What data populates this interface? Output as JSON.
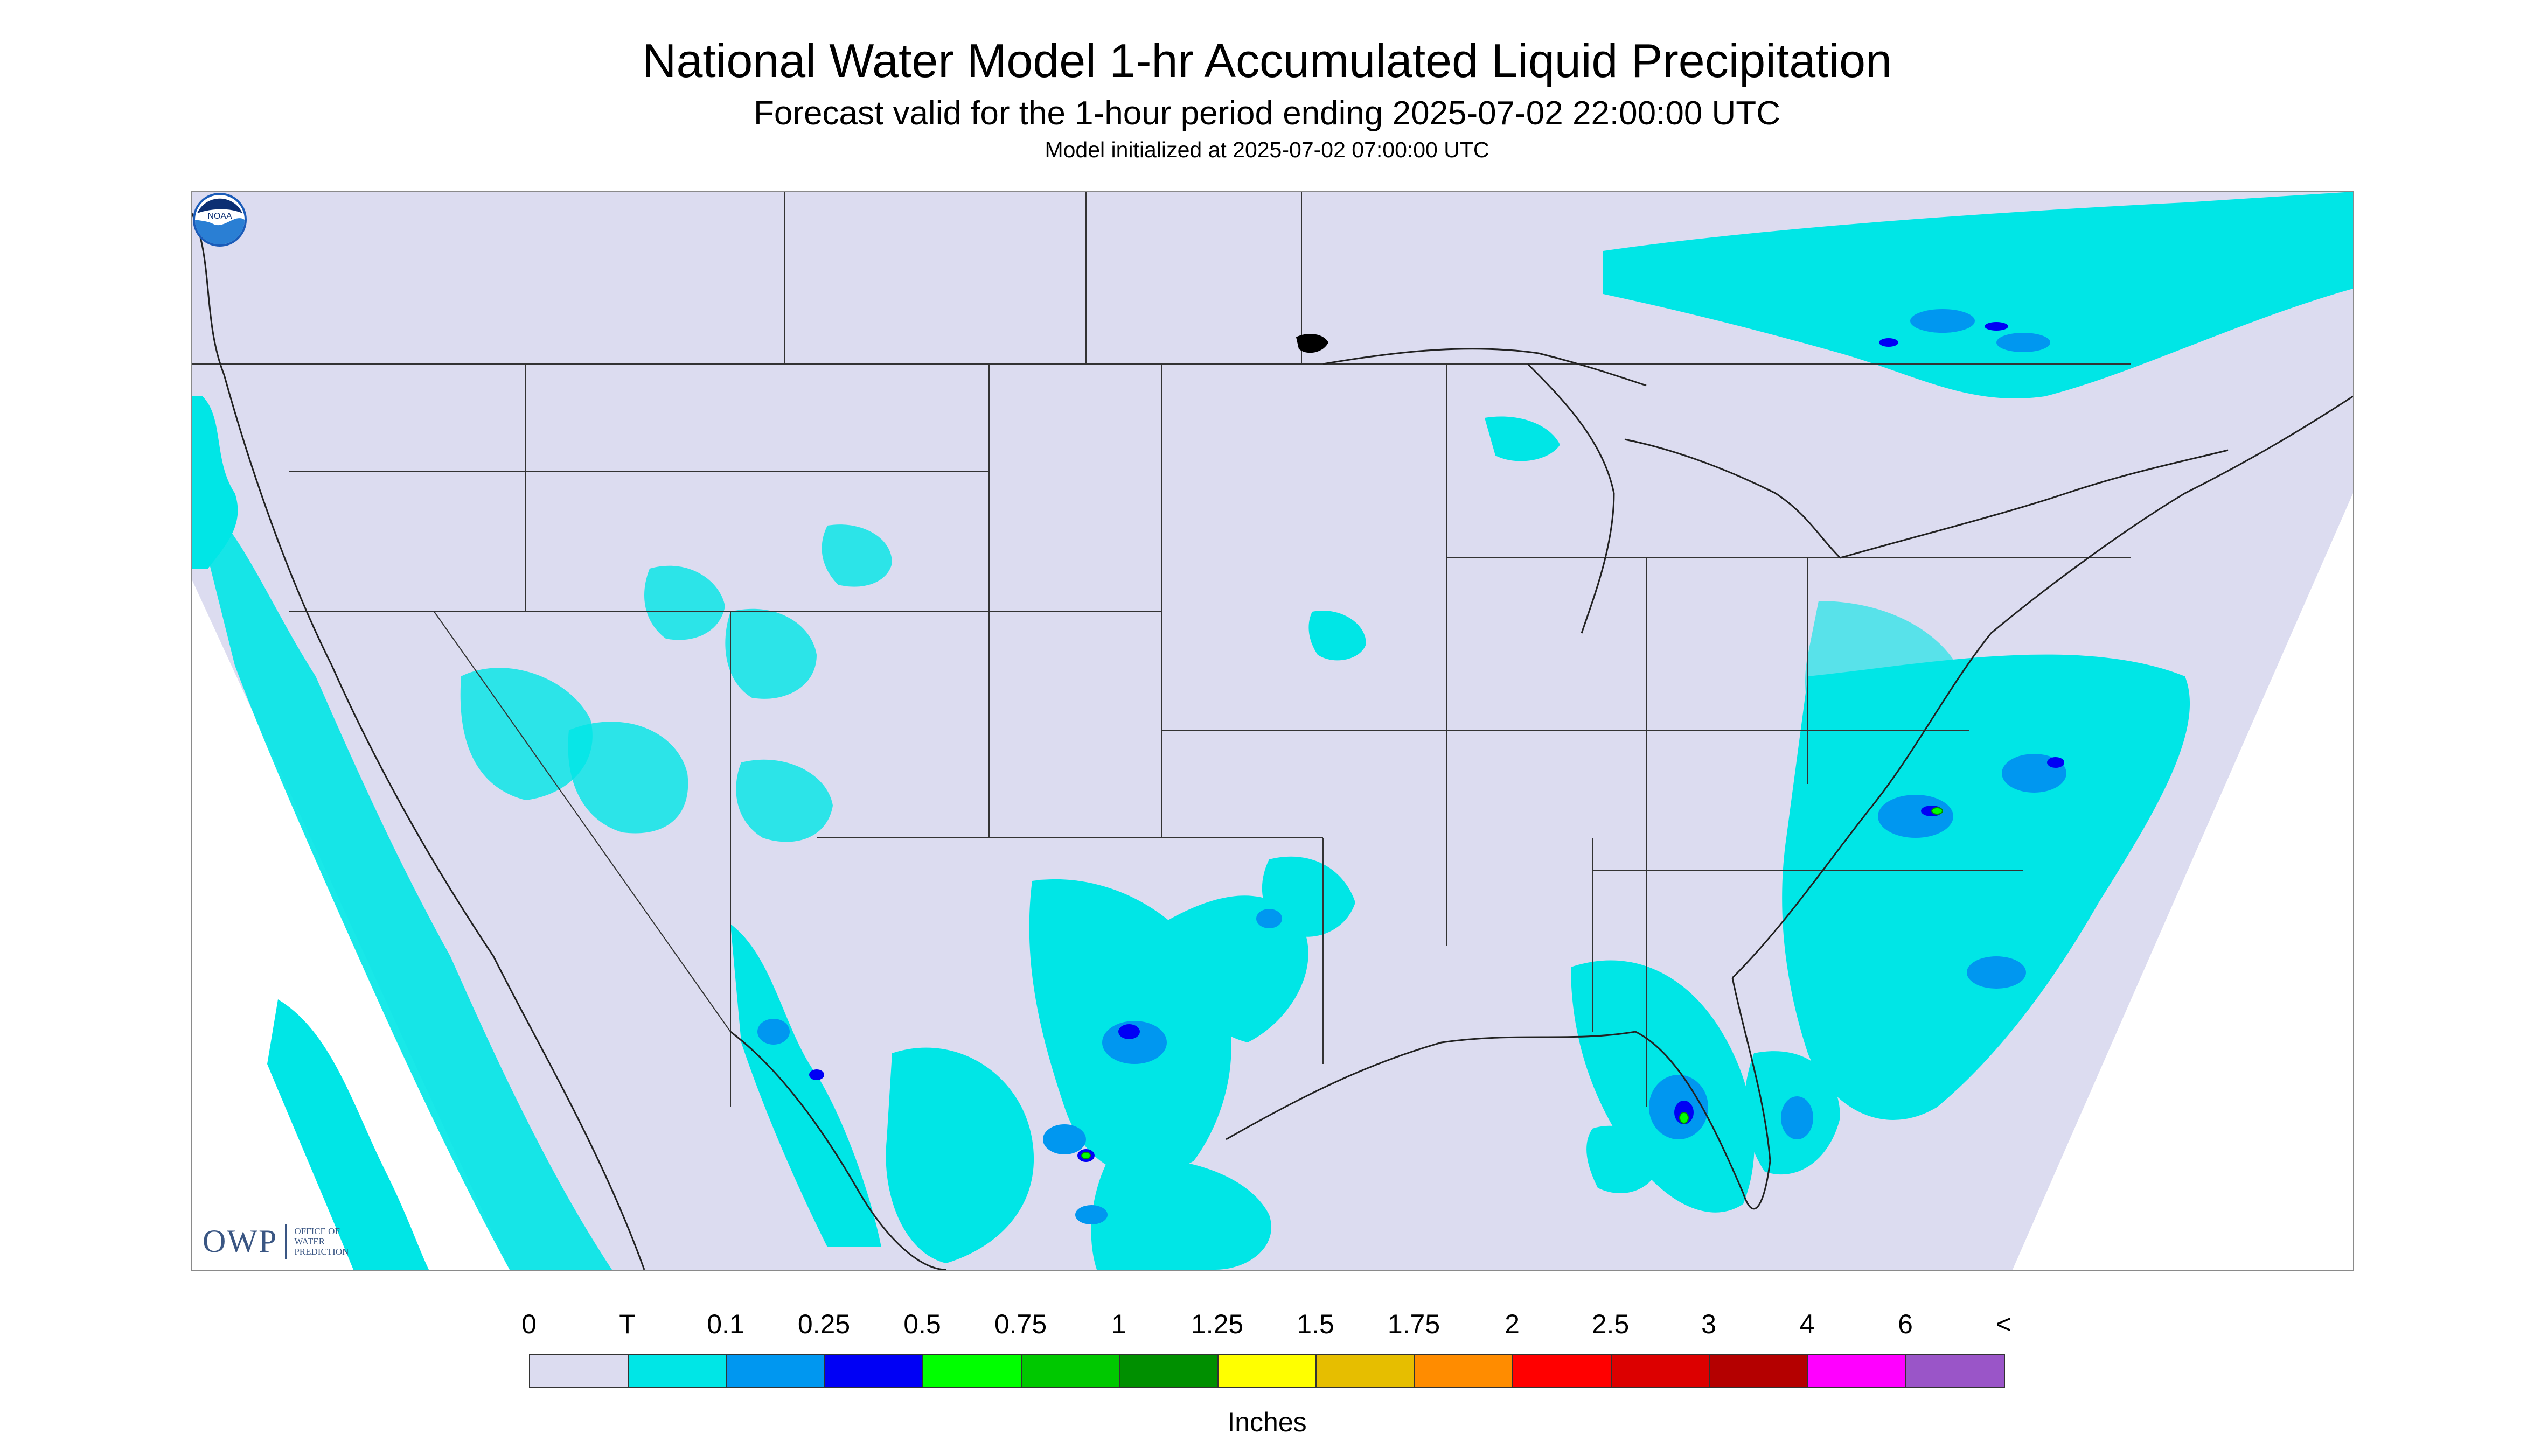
{
  "title": "National Water Model 1-hr Accumulated Liquid Precipitation",
  "subtitle": "Forecast valid for the 1-hour period ending 2025-07-02 22:00:00 UTC",
  "init_text": "Model initialized at 2025-07-02 07:00:00 UTC",
  "logos": {
    "owp_text": "OWP",
    "owp_subtitle": "OFFICE OF WATER PREDICTION",
    "noaa_text": "NOAA"
  },
  "legend": {
    "units": "Inches",
    "labels": [
      "0",
      "T",
      "0.1",
      "0.25",
      "0.5",
      "0.75",
      "1",
      "1.25",
      "1.5",
      "1.75",
      "2",
      "2.5",
      "3",
      "4",
      "6",
      "<"
    ],
    "colors": [
      "#dcdcf0",
      "#00e6e6",
      "#0097f0",
      "#0000f5",
      "#00ff00",
      "#00c800",
      "#008f00",
      "#ffff00",
      "#e6be00",
      "#ff8c00",
      "#ff0000",
      "#dc0000",
      "#b40000",
      "#ff00ff",
      "#9a55c8"
    ]
  },
  "colors": {
    "background": "#dcdcf0",
    "trace": "#00e6e6",
    "light": "#0097f0",
    "moderate": "#0000f5",
    "heavy": "#00ff00",
    "boundary": "#333333"
  }
}
